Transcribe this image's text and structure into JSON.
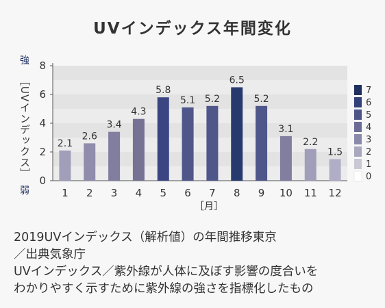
{
  "title": "UVインデックス年間変化",
  "chart_data": {
    "type": "bar",
    "categories": [
      "1",
      "2",
      "3",
      "4",
      "5",
      "6",
      "7",
      "8",
      "9",
      "10",
      "11",
      "12"
    ],
    "values": [
      2.1,
      2.6,
      3.4,
      4.3,
      5.8,
      5.1,
      5.2,
      6.5,
      5.2,
      3.1,
      2.2,
      1.5
    ],
    "value_labels": [
      "2.1",
      "2.6",
      "3.4",
      "4.3",
      "5.8",
      "5.1",
      "5.2",
      "6.5",
      "5.2",
      "3.1",
      "2.2",
      "1.5"
    ],
    "ylim": [
      0,
      8
    ],
    "yticks": [
      "0",
      "2",
      "4",
      "6",
      "8"
    ],
    "ylabel": "［UVインデックス］",
    "y_top_label": "強",
    "y_bottom_label": "弱",
    "xlabel": "［月］",
    "grid": true,
    "legend_position": "right",
    "legend": [
      {
        "label": "7",
        "color": "#1f2f5e"
      },
      {
        "label": "6",
        "color": "#34407a"
      },
      {
        "label": "5",
        "color": "#4d5487"
      },
      {
        "label": "4",
        "color": "#6c6d96"
      },
      {
        "label": "3",
        "color": "#8b89a9"
      },
      {
        "label": "2",
        "color": "#a9a7bd"
      },
      {
        "label": "1",
        "color": "#c9c8d4"
      },
      {
        "label": "0",
        "color": "#ffffff"
      }
    ],
    "bar_colors": [
      "#a09eb9",
      "#8f8cac",
      "#817e9f",
      "#757293",
      "#3a4581",
      "#4f568a",
      "#4f568a",
      "#263a6e",
      "#4f568a",
      "#817e9f",
      "#a09eb9",
      "#b0aec6"
    ]
  },
  "caption": [
    "2019UVインデックス（解析値）の年間推移東京",
    "／出典気象庁",
    "UVインデックス／紫外線が人体に及ぼす影響の度合いを",
    "わかりやすく示すために紫外線の強さを指標化したもの"
  ]
}
